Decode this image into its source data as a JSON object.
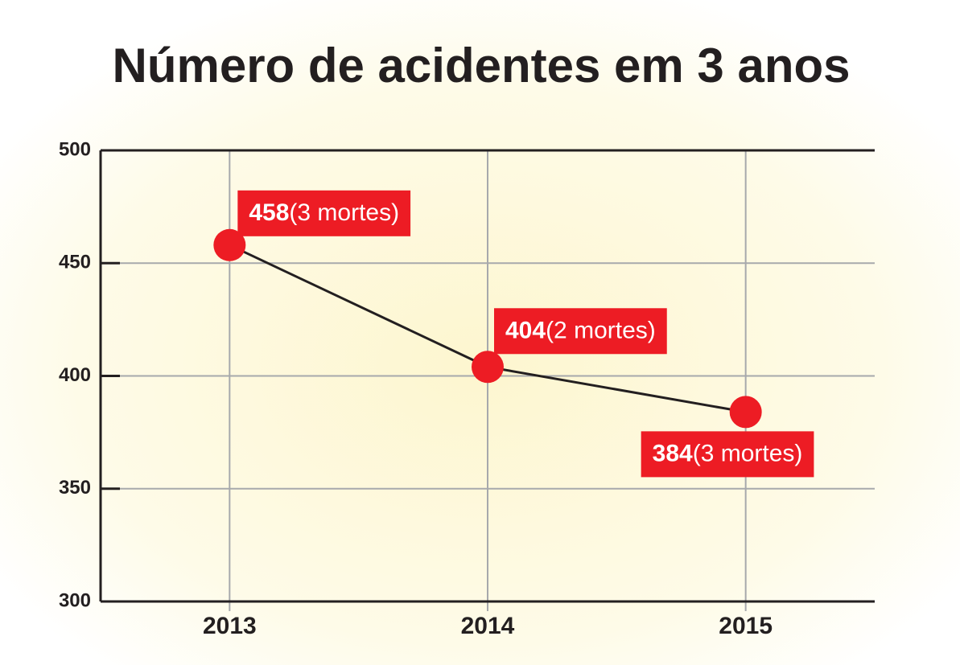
{
  "chart_data": {
    "type": "line",
    "title": "Número de acidentes em 3 anos",
    "categories": [
      "2013",
      "2014",
      "2015"
    ],
    "series": [
      {
        "name": null,
        "color": "#231f20",
        "marker_color": "#ed1c24",
        "values": [
          458,
          404,
          384
        ],
        "annotations": [
          "(3 mortes)",
          "(2 mortes)",
          "(3 mortes)"
        ]
      }
    ],
    "ylim": [
      300,
      500
    ],
    "yticks": [
      300,
      350,
      400,
      450,
      500
    ],
    "grid": true
  }
}
